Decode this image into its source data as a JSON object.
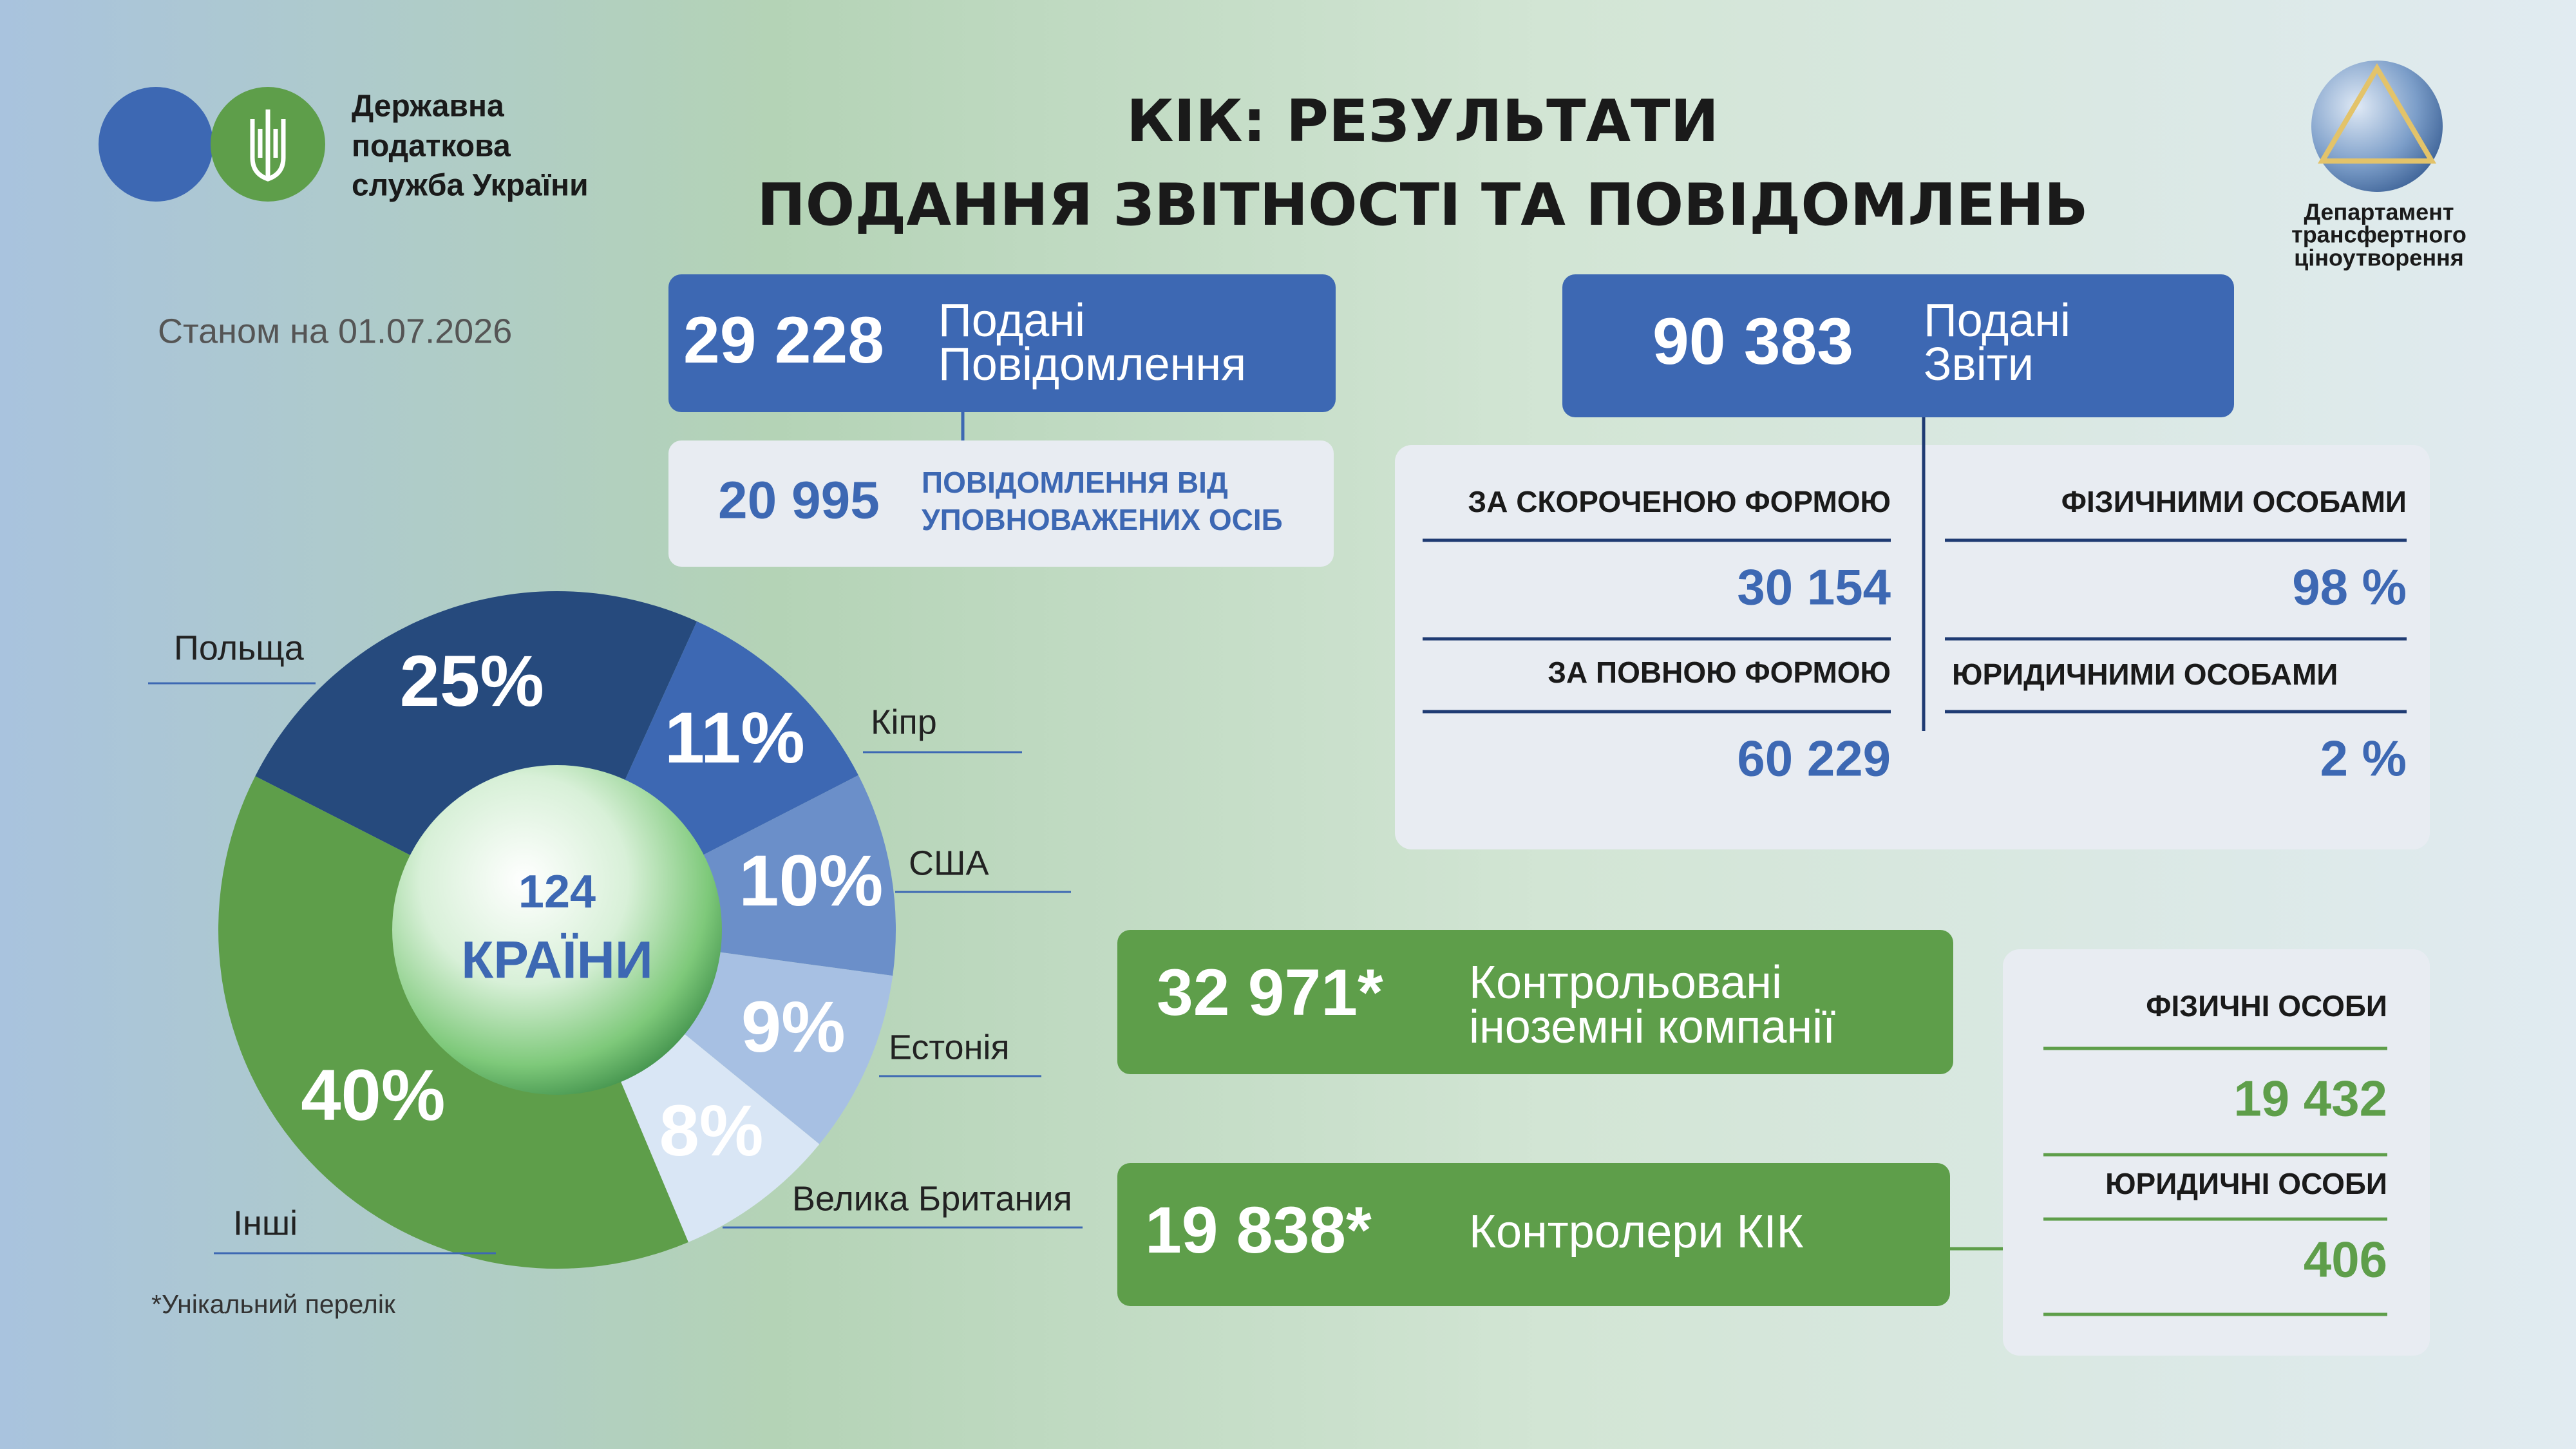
{
  "header": {
    "org": [
      "Державна",
      "податкова",
      "служба України"
    ],
    "title": [
      "КІК: РЕЗУЛЬТАТИ",
      "ПОДАННЯ ЗВІТНОСТІ ТА ПОВІДОМЛЕНЬ"
    ],
    "dept": [
      "Департамент",
      "трансфертного",
      "ціноутворення"
    ],
    "date": "Станом на 01.07.2026"
  },
  "notifications": {
    "value": "29 228",
    "label": [
      "Подані",
      "Повідомлення"
    ]
  },
  "authorized": {
    "value": "20 995",
    "label": [
      "ПОВІДОМЛЕННЯ ВІД",
      "УПОВНОВАЖЕНИХ ОСІБ"
    ]
  },
  "reports": {
    "value": "90 383",
    "label": [
      "Подані",
      "Звіти"
    ],
    "by_form": [
      {
        "label": "ЗА СКОРОЧЕНОЮ ФОРМОЮ",
        "value": "30 154"
      },
      {
        "label": "ЗА ПОВНОЮ ФОРМОЮ",
        "value": "60 229"
      }
    ],
    "by_person": [
      {
        "label": "ФІЗИЧНИМИ ОСОБАМИ",
        "value": "98 %"
      },
      {
        "label": "ЮРИДИЧНИМИ ОСОБАМИ",
        "value": "2 %"
      }
    ]
  },
  "cfc": {
    "value": "32 971*",
    "label": [
      "Контрольовані",
      "іноземні компанії"
    ]
  },
  "controllers": {
    "value": "19 838*",
    "label": "Контролери КІК",
    "breakdown": [
      {
        "label": "ФІЗИЧНІ ОСОБИ",
        "value": "19 432"
      },
      {
        "label": "ЮРИДИЧНІ ОСОБИ",
        "value": "406"
      }
    ]
  },
  "footnote": "*Унікальний перелік",
  "chart_data": {
    "type": "pie",
    "categories": [
      "Польща",
      "Кіпр",
      "США",
      "Естонія",
      "Велика Британия",
      "Інші"
    ],
    "values": [
      25,
      11,
      10,
      9,
      8,
      40
    ],
    "value_labels": [
      "25%",
      "11%",
      "10%",
      "9%",
      "8%",
      "40%"
    ],
    "colors": [
      "#264a7d",
      "#3d68b3",
      "#6b8fc9",
      "#a7c0e3",
      "#d9e6f5",
      "#5e9e4a"
    ],
    "center_text": [
      "124",
      "КРАЇНИ"
    ]
  }
}
